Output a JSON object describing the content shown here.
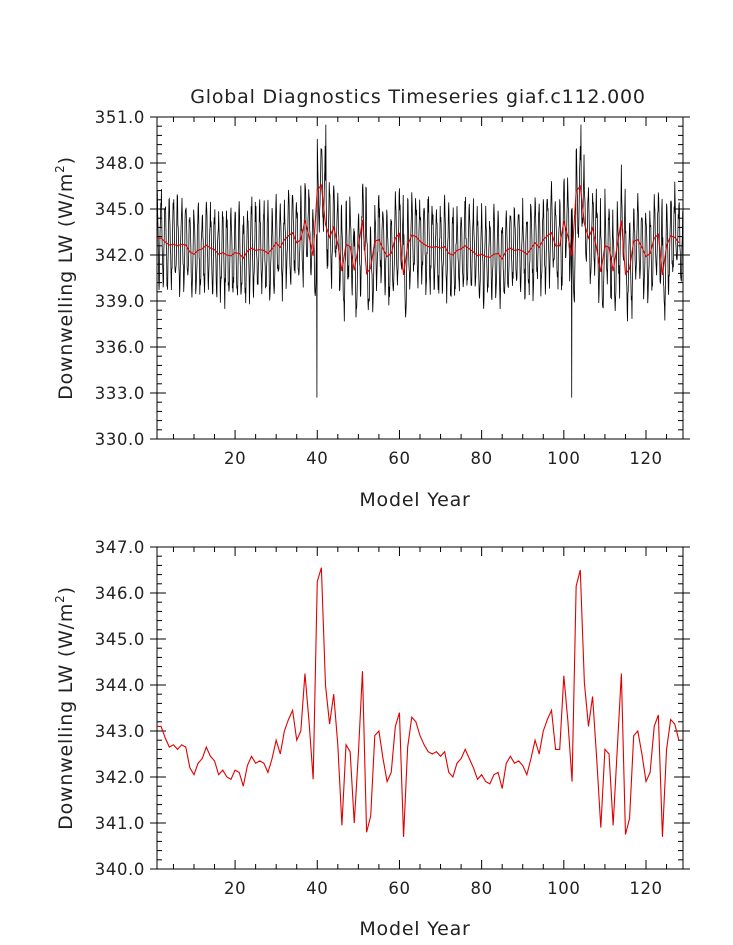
{
  "figure": {
    "title": "Global Diagnostics Timeseries giaf.c112.000"
  },
  "chart_data": [
    {
      "type": "line",
      "title": "Global Diagnostics Timeseries giaf.c112.000",
      "xlabel": "Model Year",
      "ylabel_main": "Downwelling LW (W/m",
      "ylabel_sup": "2",
      "ylabel_close": ")",
      "xlim": [
        1,
        129
      ],
      "ylim": [
        330.0,
        351.0
      ],
      "xticks": [
        20,
        40,
        60,
        80,
        100,
        120
      ],
      "xtick_labels": [
        "20",
        "40",
        "60",
        "80",
        "100",
        "120"
      ],
      "yticks": [
        330.0,
        333.0,
        336.0,
        339.0,
        342.0,
        345.0,
        348.0,
        351.0
      ],
      "ytick_labels": [
        "330.0",
        "333.0",
        "336.0",
        "339.0",
        "342.0",
        "345.0",
        "348.0",
        "351.0"
      ],
      "series": [
        {
          "color": "#000000",
          "description": "monthly values (1536 points) oscillating around the annual mean with seasonal amplitude ~3 W/m2; extremes near 350.5 and 332.7",
          "x": [],
          "y": []
        },
        {
          "color": "#e00000",
          "x": [
            1,
            2,
            3,
            4,
            5,
            6,
            7,
            8,
            9,
            10,
            11,
            12,
            13,
            14,
            15,
            16,
            17,
            18,
            19,
            20,
            21,
            22,
            23,
            24,
            25,
            26,
            27,
            28,
            29,
            30,
            31,
            32,
            33,
            34,
            35,
            36,
            37,
            38,
            39,
            40,
            41,
            42,
            43,
            44,
            45,
            46,
            47,
            48,
            49,
            50,
            51,
            52,
            53,
            54,
            55,
            56,
            57,
            58,
            59,
            60,
            61,
            62,
            63,
            64,
            65,
            66,
            67,
            68,
            69,
            70,
            71,
            72,
            73,
            74,
            75,
            76,
            77,
            78,
            79,
            80,
            81,
            82,
            83,
            84,
            85,
            86,
            87,
            88,
            89,
            90,
            91,
            92,
            93,
            94,
            95,
            96,
            97,
            98,
            99,
            100,
            101,
            102,
            103,
            104,
            105,
            106,
            107,
            108,
            109,
            110,
            111,
            112,
            113,
            114,
            115,
            116,
            117,
            118,
            119,
            120,
            121,
            122,
            123,
            124,
            125,
            126,
            127,
            128
          ],
          "y": [
            343.1,
            343.1,
            342.85,
            342.65,
            342.7,
            342.6,
            342.7,
            342.65,
            342.2,
            342.05,
            342.3,
            342.4,
            342.65,
            342.45,
            342.35,
            342.05,
            342.15,
            342.0,
            341.95,
            342.15,
            342.1,
            341.8,
            342.25,
            342.45,
            342.3,
            342.35,
            342.3,
            342.1,
            342.4,
            342.8,
            342.5,
            343.0,
            343.25,
            343.45,
            342.8,
            343.0,
            344.25,
            343.2,
            341.95,
            346.25,
            346.55,
            344.0,
            343.15,
            343.8,
            342.7,
            340.95,
            342.7,
            342.55,
            341.0,
            342.5,
            344.3,
            340.8,
            341.15,
            342.9,
            343.0,
            342.4,
            341.9,
            342.1,
            343.1,
            343.4,
            340.7,
            342.65,
            343.3,
            343.2,
            342.9,
            342.7,
            342.55,
            342.5,
            342.55,
            342.45,
            342.55,
            342.1,
            342.0,
            342.3,
            342.4,
            342.6,
            342.4,
            342.2,
            341.95,
            342.05,
            341.9,
            341.85,
            342.05,
            342.1,
            341.75,
            342.3,
            342.45,
            342.3,
            342.35,
            342.25,
            342.05,
            342.4,
            342.8,
            342.5,
            343.0,
            343.25,
            343.45,
            342.6,
            342.6,
            344.2,
            343.2,
            341.9,
            346.15,
            346.5,
            344.05,
            343.1,
            343.75,
            342.4,
            340.9,
            342.6,
            342.5,
            340.95,
            342.6,
            344.25,
            340.75,
            341.1,
            342.9,
            343.0,
            342.5,
            341.9,
            342.1,
            343.1,
            343.35,
            340.7,
            342.6,
            343.25,
            343.15,
            342.8
          ]
        }
      ]
    },
    {
      "type": "line",
      "xlabel": "Model Year",
      "ylabel_main": "Downwelling LW (W/m",
      "ylabel_sup": "2",
      "ylabel_close": ")",
      "xlim": [
        1,
        129
      ],
      "ylim": [
        340.0,
        347.0
      ],
      "xticks": [
        20,
        40,
        60,
        80,
        100,
        120
      ],
      "xtick_labels": [
        "20",
        "40",
        "60",
        "80",
        "100",
        "120"
      ],
      "yticks": [
        340.0,
        341.0,
        342.0,
        343.0,
        344.0,
        345.0,
        346.0,
        347.0
      ],
      "ytick_labels": [
        "340.0",
        "341.0",
        "342.0",
        "343.0",
        "344.0",
        "345.0",
        "346.0",
        "347.0"
      ],
      "series": [
        {
          "color": "#e00000",
          "x": [
            1,
            2,
            3,
            4,
            5,
            6,
            7,
            8,
            9,
            10,
            11,
            12,
            13,
            14,
            15,
            16,
            17,
            18,
            19,
            20,
            21,
            22,
            23,
            24,
            25,
            26,
            27,
            28,
            29,
            30,
            31,
            32,
            33,
            34,
            35,
            36,
            37,
            38,
            39,
            40,
            41,
            42,
            43,
            44,
            45,
            46,
            47,
            48,
            49,
            50,
            51,
            52,
            53,
            54,
            55,
            56,
            57,
            58,
            59,
            60,
            61,
            62,
            63,
            64,
            65,
            66,
            67,
            68,
            69,
            70,
            71,
            72,
            73,
            74,
            75,
            76,
            77,
            78,
            79,
            80,
            81,
            82,
            83,
            84,
            85,
            86,
            87,
            88,
            89,
            90,
            91,
            92,
            93,
            94,
            95,
            96,
            97,
            98,
            99,
            100,
            101,
            102,
            103,
            104,
            105,
            106,
            107,
            108,
            109,
            110,
            111,
            112,
            113,
            114,
            115,
            116,
            117,
            118,
            119,
            120,
            121,
            122,
            123,
            124,
            125,
            126,
            127,
            128
          ],
          "y": [
            343.1,
            343.1,
            342.85,
            342.65,
            342.7,
            342.6,
            342.7,
            342.65,
            342.2,
            342.05,
            342.3,
            342.4,
            342.65,
            342.45,
            342.35,
            342.05,
            342.15,
            342.0,
            341.95,
            342.15,
            342.1,
            341.8,
            342.25,
            342.45,
            342.3,
            342.35,
            342.3,
            342.1,
            342.4,
            342.8,
            342.5,
            343.0,
            343.25,
            343.45,
            342.8,
            343.0,
            344.25,
            343.2,
            341.95,
            346.25,
            346.55,
            344.0,
            343.15,
            343.8,
            342.7,
            340.95,
            342.7,
            342.55,
            341.0,
            342.5,
            344.3,
            340.8,
            341.15,
            342.9,
            343.0,
            342.4,
            341.9,
            342.1,
            343.1,
            343.4,
            340.7,
            342.65,
            343.3,
            343.2,
            342.9,
            342.7,
            342.55,
            342.5,
            342.55,
            342.45,
            342.55,
            342.1,
            342.0,
            342.3,
            342.4,
            342.6,
            342.4,
            342.2,
            341.95,
            342.05,
            341.9,
            341.85,
            342.05,
            342.1,
            341.75,
            342.3,
            342.45,
            342.3,
            342.35,
            342.25,
            342.05,
            342.4,
            342.8,
            342.5,
            343.0,
            343.25,
            343.45,
            342.6,
            342.6,
            344.2,
            343.2,
            341.9,
            346.15,
            346.5,
            344.05,
            343.1,
            343.75,
            342.4,
            340.9,
            342.6,
            342.5,
            340.95,
            342.6,
            344.25,
            340.75,
            341.1,
            342.9,
            343.0,
            342.5,
            341.9,
            342.1,
            343.1,
            343.35,
            340.7,
            342.6,
            343.25,
            343.15,
            342.8
          ]
        }
      ]
    }
  ]
}
